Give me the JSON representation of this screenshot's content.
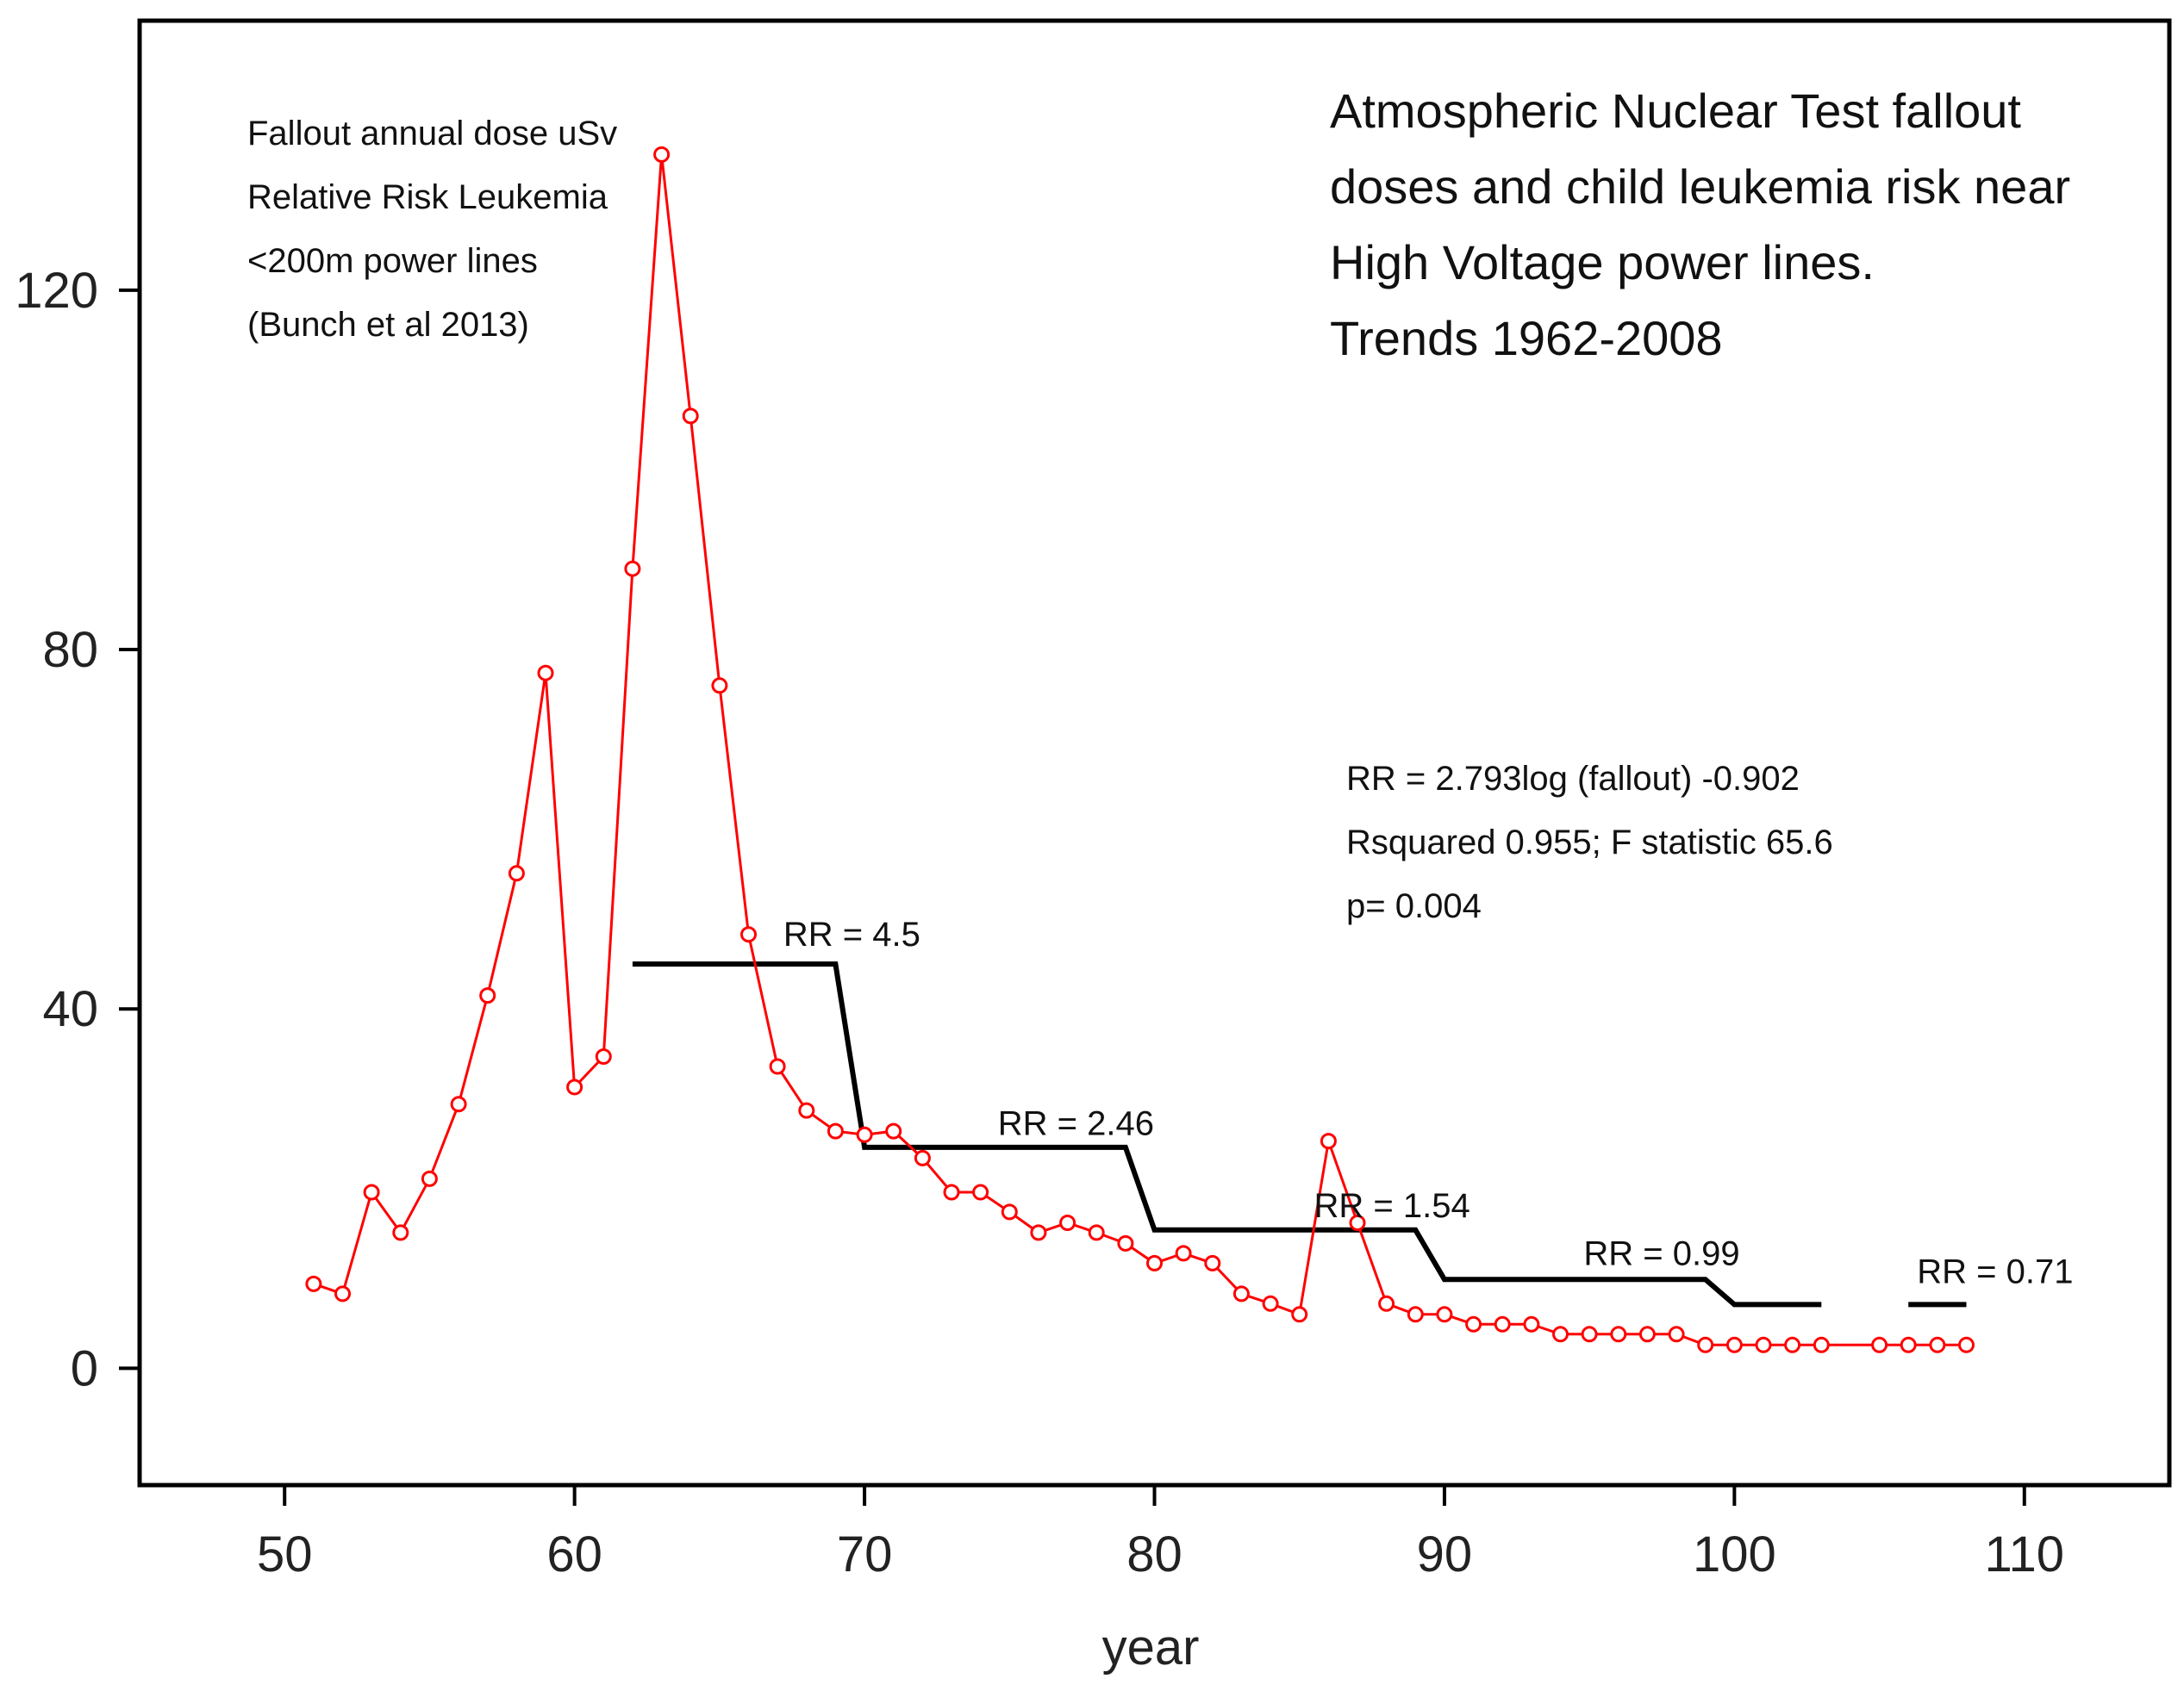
{
  "chart_data": {
    "type": "line",
    "title": "",
    "title_lines": [
      "Atmospheric Nuclear Test fallout",
      "doses and child leukemia risk near",
      "High Voltage power lines.",
      "Trends 1962-2008"
    ],
    "legend_lines": [
      "Fallout annual dose uSv",
      "Relative Risk Leukemia",
      "<200m power lines",
      "(Bunch et al 2013)"
    ],
    "annotation_lines": [
      "RR = 2.793log (fallout) -0.902",
      "Rsquared 0.955; F statistic 65.6",
      "p= 0.004"
    ],
    "xlabel": "year",
    "ylabel": "",
    "xlim": [
      45,
      115
    ],
    "ylim": [
      -13,
      150
    ],
    "xticks": [
      50,
      60,
      70,
      80,
      90,
      100,
      110
    ],
    "yticks": [
      0,
      40,
      80,
      120
    ],
    "colors": {
      "fallout": "#ff0000",
      "rr": "#000000",
      "axes": "#000000"
    },
    "series": [
      {
        "key": "fallout",
        "marker": "circle",
        "points": [
          [
            51,
            9.4
          ],
          [
            52,
            8.3
          ],
          [
            53,
            19.6
          ],
          [
            54,
            15.1
          ],
          [
            55,
            21.1
          ],
          [
            56,
            29.4
          ],
          [
            57,
            41.5
          ],
          [
            58,
            55.1
          ],
          [
            59,
            77.4
          ],
          [
            60,
            31.3
          ],
          [
            61,
            34.7
          ],
          [
            62,
            89.0
          ],
          [
            63,
            135.1
          ],
          [
            64,
            106.0
          ],
          [
            65,
            76.0
          ],
          [
            66,
            48.3
          ],
          [
            67,
            33.6
          ],
          [
            68,
            28.7
          ],
          [
            69,
            26.4
          ],
          [
            70,
            26.0
          ],
          [
            71,
            26.4
          ],
          [
            72,
            23.4
          ],
          [
            73,
            19.6
          ],
          [
            74,
            19.6
          ],
          [
            75,
            17.4
          ],
          [
            76,
            15.1
          ],
          [
            77,
            16.2
          ],
          [
            78,
            15.1
          ],
          [
            79,
            13.9
          ],
          [
            80,
            11.7
          ],
          [
            81,
            12.8
          ],
          [
            82,
            11.7
          ],
          [
            83,
            8.3
          ],
          [
            84,
            7.2
          ],
          [
            85,
            6.0
          ],
          [
            86,
            25.3
          ],
          [
            87,
            16.2
          ],
          [
            88,
            7.2
          ],
          [
            89,
            6.0
          ],
          [
            90,
            6.0
          ],
          [
            91,
            4.9
          ],
          [
            92,
            4.9
          ],
          [
            93,
            4.9
          ],
          [
            94,
            3.8
          ],
          [
            95,
            3.8
          ],
          [
            96,
            3.8
          ],
          [
            97,
            3.8
          ],
          [
            98,
            3.8
          ],
          [
            99,
            2.6
          ],
          [
            100,
            2.6
          ],
          [
            101,
            2.6
          ],
          [
            102,
            2.6
          ],
          [
            103,
            2.6
          ],
          [
            105,
            2.6
          ],
          [
            106,
            2.6
          ],
          [
            107,
            2.6
          ],
          [
            108,
            2.6
          ]
        ]
      },
      {
        "key": "rr",
        "marker": "none",
        "segments": [
          [
            [
              62,
              45.0
            ],
            [
              69,
              45.0
            ],
            [
              70,
              24.6
            ],
            [
              79,
              24.6
            ],
            [
              80,
              15.4
            ],
            [
              89,
              15.4
            ],
            [
              90,
              9.9
            ],
            [
              99,
              9.9
            ],
            [
              100,
              7.1
            ],
            [
              103,
              7.1
            ]
          ],
          [
            [
              106,
              7.1
            ],
            [
              108,
              7.1
            ]
          ]
        ]
      }
    ],
    "rr_labels": [
      {
        "text": "RR = 4.5",
        "x": 67.2,
        "y": 47.0
      },
      {
        "text": "RR = 2.46",
        "x": 74.6,
        "y": 26.0
      },
      {
        "text": "RR = 1.54",
        "x": 85.5,
        "y": 16.8
      },
      {
        "text": "RR = 0.99",
        "x": 94.8,
        "y": 11.5
      },
      {
        "text": "RR = 0.71",
        "x": 106.3,
        "y": 9.5
      }
    ],
    "grid": false
  }
}
